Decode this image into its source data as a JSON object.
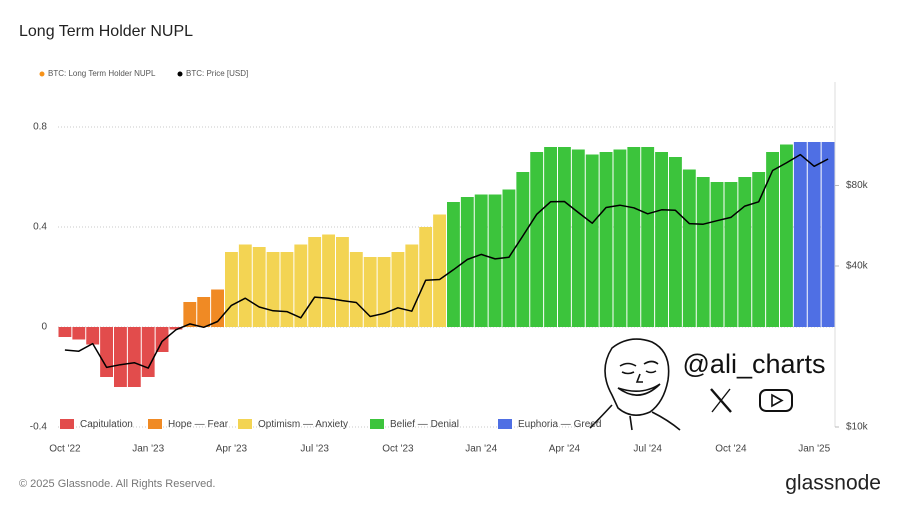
{
  "chart_data": {
    "type": "bar",
    "title": "Long Term Holder NUPL",
    "top_legend": {
      "name": "BTC: Long Term Holder NUPL",
      "color": "#f7931a"
    },
    "categories": [
      "Oct '22",
      null,
      null,
      null,
      null,
      null,
      "Jan '23",
      null,
      null,
      null,
      null,
      null,
      "Apr '23",
      null,
      null,
      null,
      null,
      null,
      "Jul '23",
      null,
      null,
      null,
      null,
      null,
      "Oct '23",
      null,
      null,
      null,
      null,
      null,
      "Jan '24",
      null,
      null,
      null,
      null,
      null,
      "Apr '24",
      null,
      null,
      null,
      null,
      null,
      "Jul '24",
      null,
      null,
      null,
      null,
      null,
      "Oct '24",
      null,
      null,
      null,
      null,
      null,
      "Jan '25",
      null
    ],
    "series": [
      {
        "name": "Capitulation",
        "color": "#e24c4c",
        "values": [
          -0.04,
          -0.05,
          -0.07,
          -0.2,
          -0.24,
          -0.24,
          -0.2,
          -0.1,
          -0.01,
          null,
          null,
          null,
          null,
          null,
          null,
          null,
          null,
          null,
          null,
          null,
          null,
          null,
          null,
          null,
          null,
          null,
          null,
          null,
          null,
          null,
          null,
          null,
          null,
          null,
          null,
          null,
          null,
          null,
          null,
          null,
          null,
          null,
          null,
          null,
          null,
          null,
          null,
          null,
          null,
          null,
          null,
          null,
          null,
          null,
          null,
          null
        ]
      },
      {
        "name": "Hope — Fear",
        "color": "#f08a24",
        "values": [
          null,
          null,
          null,
          null,
          null,
          null,
          null,
          null,
          null,
          0.1,
          0.12,
          0.15,
          null,
          null,
          null,
          null,
          null,
          null,
          null,
          null,
          null,
          null,
          null,
          null,
          null,
          null,
          null,
          null,
          null,
          null,
          null,
          null,
          null,
          null,
          null,
          null,
          null,
          null,
          null,
          null,
          null,
          null,
          null,
          null,
          null,
          null,
          null,
          null,
          null,
          null,
          null,
          null,
          null,
          null,
          null,
          null
        ]
      },
      {
        "name": "Optimism — Anxiety",
        "color": "#f3d453",
        "values": [
          null,
          null,
          null,
          null,
          null,
          null,
          null,
          null,
          null,
          null,
          null,
          null,
          0.3,
          0.33,
          0.32,
          0.3,
          0.3,
          0.33,
          0.36,
          0.37,
          0.36,
          0.3,
          0.28,
          0.28,
          0.3,
          0.33,
          0.4,
          0.45,
          null,
          null,
          null,
          null,
          null,
          null,
          null,
          null,
          null,
          null,
          null,
          null,
          null,
          null,
          null,
          null,
          null,
          null,
          null,
          null,
          null,
          null,
          null,
          null,
          null,
          null,
          null,
          null
        ]
      },
      {
        "name": "Belief — Denial",
        "color": "#3cc43c",
        "values": [
          null,
          null,
          null,
          null,
          null,
          null,
          null,
          null,
          null,
          null,
          null,
          null,
          null,
          null,
          null,
          null,
          null,
          null,
          null,
          null,
          null,
          null,
          null,
          null,
          null,
          null,
          null,
          null,
          0.5,
          0.52,
          0.53,
          0.53,
          0.55,
          0.62,
          0.7,
          0.72,
          0.72,
          0.71,
          0.69,
          0.7,
          0.71,
          0.72,
          0.72,
          0.7,
          0.68,
          0.63,
          0.6,
          0.58,
          0.58,
          0.6,
          0.62,
          0.7,
          0.73,
          null,
          null,
          null
        ]
      },
      {
        "name": "Euphoria — Greed",
        "color": "#4f6fe4",
        "values": [
          null,
          null,
          null,
          null,
          null,
          null,
          null,
          null,
          null,
          null,
          null,
          null,
          null,
          null,
          null,
          null,
          null,
          null,
          null,
          null,
          null,
          null,
          null,
          null,
          null,
          null,
          null,
          null,
          null,
          null,
          null,
          null,
          null,
          null,
          null,
          null,
          null,
          null,
          null,
          null,
          null,
          null,
          null,
          null,
          null,
          null,
          null,
          null,
          null,
          null,
          null,
          null,
          null,
          0.74,
          0.74,
          0.74
        ]
      },
      {
        "name": "BTC: Price [USD]",
        "color": "#000000",
        "axis": "y2",
        "type": "line",
        "values": [
          19400,
          19200,
          20500,
          16700,
          17100,
          17400,
          16600,
          20900,
          23100,
          24300,
          23600,
          24800,
          28500,
          30300,
          28100,
          27200,
          27000,
          25600,
          30600,
          30300,
          29700,
          29200,
          25900,
          26600,
          27900,
          27100,
          35400,
          35600,
          38700,
          42300,
          44200,
          42500,
          43100,
          51800,
          62400,
          69500,
          69700,
          63400,
          57800,
          66200,
          67500,
          66000,
          62700,
          64900,
          64600,
          57600,
          57300,
          59100,
          60800,
          67000,
          69500,
          91000,
          97200,
          104400,
          94400,
          100500
        ]
      }
    ],
    "ylim": [
      -0.4,
      0.98
    ],
    "yticks": [
      -0.4,
      0,
      0.4,
      0.8
    ],
    "y2lim": [
      10000,
      195000
    ],
    "y2scale": "log",
    "y2ticks": [
      {
        "value": 10000,
        "label": "$10k"
      },
      {
        "value": 40000,
        "label": "$40k"
      },
      {
        "value": 80000,
        "label": "$80k"
      }
    ],
    "grid": true
  },
  "watermark": {
    "handle": "@ali_charts"
  },
  "footer": {
    "copyright": "© 2025 Glassnode. All Rights Reserved.",
    "brand": "glassnode"
  }
}
